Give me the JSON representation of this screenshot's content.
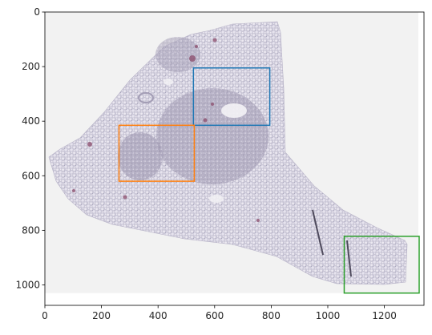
{
  "image_data": {
    "type": "image_with_boxes",
    "xlim": [
      0,
      1340
    ],
    "ylim": [
      1075,
      0
    ],
    "image_extent": {
      "x": [
        0,
        1320
      ],
      "y": [
        0,
        1030
      ]
    },
    "xticks": [
      0,
      200,
      400,
      600,
      800,
      1000,
      1200
    ],
    "yticks": [
      0,
      200,
      400,
      600,
      800,
      1000
    ],
    "xtick_labels": [
      "0",
      "200",
      "400",
      "600",
      "800",
      "1000",
      "1200"
    ],
    "ytick_labels": [
      "0",
      "200",
      "400",
      "600",
      "800",
      "1000"
    ],
    "boxes": [
      {
        "color": "#1f77b4",
        "x0": 525,
        "y0": 205,
        "x1": 795,
        "y1": 415
      },
      {
        "color": "#ff7f0e",
        "x0": 262,
        "y0": 415,
        "x1": 528,
        "y1": 620
      },
      {
        "color": "#2ca02c",
        "x0": 1058,
        "y0": 822,
        "x1": 1323,
        "y1": 1030
      }
    ]
  }
}
